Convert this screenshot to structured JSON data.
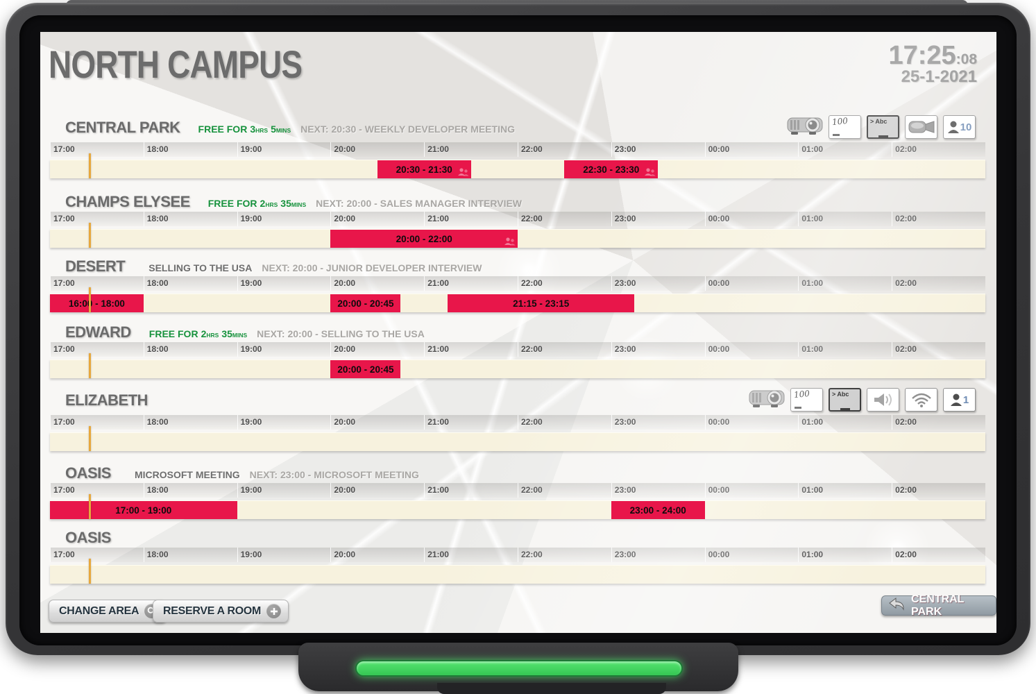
{
  "header": {
    "title": "NORTH CAMPUS",
    "clock": "17:25",
    "clock_seconds": ":08",
    "date": "25-1-2021"
  },
  "timeline": {
    "hours": [
      "17:00",
      "18:00",
      "19:00",
      "20:00",
      "21:00",
      "22:00",
      "23:00",
      "00:00",
      "01:00",
      "02:00"
    ],
    "span_hours": 10,
    "current_time_pct": 4.17
  },
  "rooms": [
    {
      "name": "CENTRAL PARK",
      "status_kind": "free",
      "free_label": "FREE FOR",
      "free_hours": "3",
      "free_hours_unit": "HRS",
      "free_mins": "5",
      "free_mins_unit": "MINS",
      "next_label": "NEXT: 20:30 - WEEKLY DEVELOPER MEETING",
      "icons": {
        "whiteboard": "100",
        "screen": "> Abc",
        "capacity": "10"
      },
      "bookings": [
        {
          "label": "20:30 - 21:30",
          "start_pct": 35,
          "width_pct": 10,
          "attendees": true
        },
        {
          "label": "22:30 - 23:30",
          "start_pct": 55,
          "width_pct": 10,
          "attendees": true
        }
      ]
    },
    {
      "name": "CHAMPS ELYSEE",
      "status_kind": "free",
      "free_label": "FREE FOR",
      "free_hours": "2",
      "free_hours_unit": "HRS",
      "free_mins": "35",
      "free_mins_unit": "MINS",
      "next_label": "NEXT: 20:00 - SALES MANAGER INTERVIEW",
      "bookings": [
        {
          "label": "20:00 - 22:00",
          "start_pct": 30,
          "width_pct": 20,
          "attendees": true
        }
      ]
    },
    {
      "name": "DESERT",
      "status_kind": "busy",
      "busy_label": "SELLING TO THE USA",
      "next_label": "NEXT: 20:00 - JUNIOR DEVELOPER INTERVIEW",
      "bookings": [
        {
          "label": "16:00 - 18:00",
          "start_pct": 0,
          "width_pct": 10,
          "attendees": false
        },
        {
          "label": "20:00 - 20:45",
          "start_pct": 30,
          "width_pct": 7.5,
          "attendees": false
        },
        {
          "label": "21:15 - 23:15",
          "start_pct": 42.5,
          "width_pct": 20,
          "attendees": false
        }
      ]
    },
    {
      "name": "EDWARD",
      "status_kind": "free",
      "free_label": "FREE FOR",
      "free_hours": "2",
      "free_hours_unit": "HRS",
      "free_mins": "35",
      "free_mins_unit": "MINS",
      "next_label": "NEXT: 20:00 - SELLING TO THE USA",
      "bookings": [
        {
          "label": "20:00 - 20:45",
          "start_pct": 30,
          "width_pct": 7.5,
          "attendees": false
        }
      ]
    },
    {
      "name": "ELIZABETH",
      "status_kind": "none",
      "icons": {
        "whiteboard": "100",
        "screen": "> Abc",
        "capacity": "1"
      },
      "bookings": []
    },
    {
      "name": "OASIS",
      "status_kind": "busy",
      "busy_label": "MICROSOFT MEETING",
      "next_label": "NEXT: 23:00 - MICROSOFT MEETING",
      "bookings": [
        {
          "label": "17:00 - 19:00",
          "start_pct": 0,
          "width_pct": 20,
          "attendees": false
        },
        {
          "label": "23:00 - 24:00",
          "start_pct": 60,
          "width_pct": 10,
          "attendees": false
        }
      ]
    },
    {
      "name": "OASIS",
      "status_kind": "none",
      "bookings": []
    }
  ],
  "footer": {
    "change_area_label": "CHANGE AREA",
    "reserve_room_label": "RESERVE A ROOM",
    "back_label": "CENTRAL PARK"
  },
  "colors": {
    "booking_red": "#e8164a",
    "strip_cream": "#f7f2de",
    "free_green": "#17923d",
    "time_marker_orange": "#e7a83d",
    "led_green": "#55e570"
  }
}
